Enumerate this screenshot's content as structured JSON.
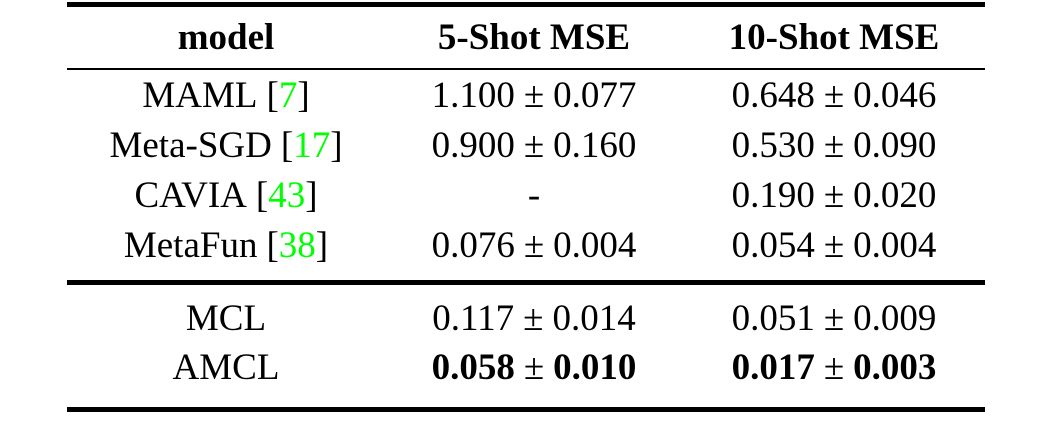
{
  "table": {
    "columns": [
      "model",
      "5-Shot MSE",
      "10-Shot MSE"
    ],
    "bracket_open": "[",
    "bracket_close": "]",
    "pm_symbol": "±",
    "citation_color": "#00FF00",
    "baselines": [
      {
        "name": "MAML",
        "cite": "7",
        "shot5": {
          "val": "1.100",
          "pm": "±",
          "err": "0.077"
        },
        "shot10": {
          "val": "0.648",
          "pm": "±",
          "err": "0.046"
        }
      },
      {
        "name": "Meta-SGD",
        "cite": "17",
        "shot5": {
          "val": "0.900",
          "pm": "±",
          "err": "0.160"
        },
        "shot10": {
          "val": "0.530",
          "pm": "±",
          "err": "0.090"
        }
      },
      {
        "name": "CAVIA",
        "cite": "43",
        "shot5": {
          "val": "-",
          "pm": "",
          "err": ""
        },
        "shot10": {
          "val": "0.190",
          "pm": "±",
          "err": "0.020"
        }
      },
      {
        "name": "MetaFun",
        "cite": "38",
        "shot5": {
          "val": "0.076",
          "pm": "±",
          "err": "0.004"
        },
        "shot10": {
          "val": "0.054",
          "pm": "±",
          "err": "0.004"
        }
      }
    ],
    "ours": [
      {
        "name": "MCL",
        "bold": false,
        "shot5": {
          "val": "0.117",
          "pm": "±",
          "err": "0.014"
        },
        "shot10": {
          "val": "0.051",
          "pm": "±",
          "err": "0.009"
        }
      },
      {
        "name": "AMCL",
        "bold": true,
        "shot5": {
          "val": "0.058",
          "pm": "±",
          "err": "0.010"
        },
        "shot10": {
          "val": "0.017",
          "pm": "±",
          "err": "0.003"
        }
      }
    ]
  }
}
